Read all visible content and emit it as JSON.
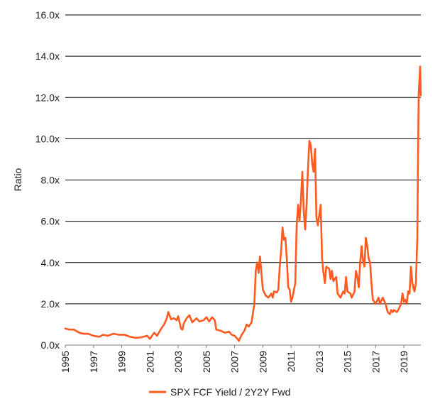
{
  "chart_data": {
    "type": "line",
    "ylabel": "Ratio",
    "xlabel": "",
    "ylim": [
      0,
      16
    ],
    "xlim": [
      1995,
      2020.2
    ],
    "y_ticks": [
      {
        "value": 0,
        "label": "0.0x"
      },
      {
        "value": 2,
        "label": "2.0x"
      },
      {
        "value": 4,
        "label": "4.0x"
      },
      {
        "value": 6,
        "label": "6.0x"
      },
      {
        "value": 8,
        "label": "8.0x"
      },
      {
        "value": 10,
        "label": "10.0x"
      },
      {
        "value": 12,
        "label": "12.0x"
      },
      {
        "value": 14,
        "label": "14.0x"
      },
      {
        "value": 16,
        "label": "16.0x"
      }
    ],
    "x_ticks": [
      {
        "value": 1995,
        "label": "1995"
      },
      {
        "value": 1997,
        "label": "1997"
      },
      {
        "value": 1999,
        "label": "1999"
      },
      {
        "value": 2001,
        "label": "2001"
      },
      {
        "value": 2003,
        "label": "2003"
      },
      {
        "value": 2005,
        "label": "2005"
      },
      {
        "value": 2007,
        "label": "2007"
      },
      {
        "value": 2009,
        "label": "2009"
      },
      {
        "value": 2011,
        "label": "2011"
      },
      {
        "value": 2013,
        "label": "2013"
      },
      {
        "value": 2015,
        "label": "2015"
      },
      {
        "value": 2017,
        "label": "2017"
      },
      {
        "value": 2019,
        "label": "2019"
      }
    ],
    "grid": {
      "horizontal": true,
      "vertical": false
    },
    "legend": {
      "position": "bottom"
    },
    "series": [
      {
        "name": "SPX FCF Yield / 2Y2Y Fwd",
        "color": "#FF5A1F",
        "points": [
          [
            1995.0,
            0.8
          ],
          [
            1995.3,
            0.75
          ],
          [
            1995.6,
            0.75
          ],
          [
            1996.0,
            0.6
          ],
          [
            1996.3,
            0.55
          ],
          [
            1996.6,
            0.55
          ],
          [
            1997.0,
            0.45
          ],
          [
            1997.4,
            0.4
          ],
          [
            1997.7,
            0.5
          ],
          [
            1998.0,
            0.45
          ],
          [
            1998.4,
            0.55
          ],
          [
            1998.8,
            0.5
          ],
          [
            1999.2,
            0.5
          ],
          [
            1999.6,
            0.4
          ],
          [
            2000.0,
            0.35
          ],
          [
            2000.4,
            0.38
          ],
          [
            2000.8,
            0.45
          ],
          [
            2001.0,
            0.3
          ],
          [
            2001.3,
            0.6
          ],
          [
            2001.5,
            0.45
          ],
          [
            2001.8,
            0.8
          ],
          [
            2002.0,
            1.0
          ],
          [
            2002.2,
            1.3
          ],
          [
            2002.3,
            1.6
          ],
          [
            2002.5,
            1.25
          ],
          [
            2002.7,
            1.3
          ],
          [
            2002.9,
            1.2
          ],
          [
            2003.0,
            1.4
          ],
          [
            2003.2,
            0.8
          ],
          [
            2003.3,
            0.75
          ],
          [
            2003.4,
            1.05
          ],
          [
            2003.6,
            1.3
          ],
          [
            2003.8,
            1.45
          ],
          [
            2004.0,
            1.1
          ],
          [
            2004.3,
            1.3
          ],
          [
            2004.5,
            1.15
          ],
          [
            2004.8,
            1.2
          ],
          [
            2005.0,
            1.35
          ],
          [
            2005.2,
            1.15
          ],
          [
            2005.4,
            1.35
          ],
          [
            2005.6,
            1.2
          ],
          [
            2005.7,
            0.75
          ],
          [
            2006.0,
            0.7
          ],
          [
            2006.3,
            0.6
          ],
          [
            2006.6,
            0.65
          ],
          [
            2006.8,
            0.5
          ],
          [
            2007.0,
            0.45
          ],
          [
            2007.2,
            0.3
          ],
          [
            2007.3,
            0.2
          ],
          [
            2007.5,
            0.5
          ],
          [
            2007.7,
            0.7
          ],
          [
            2007.85,
            1.0
          ],
          [
            2008.0,
            0.9
          ],
          [
            2008.2,
            1.1
          ],
          [
            2008.4,
            2.0
          ],
          [
            2008.5,
            3.6
          ],
          [
            2008.6,
            4.0
          ],
          [
            2008.7,
            3.5
          ],
          [
            2008.8,
            4.3
          ],
          [
            2008.9,
            3.5
          ],
          [
            2009.0,
            2.7
          ],
          [
            2009.2,
            2.4
          ],
          [
            2009.4,
            2.3
          ],
          [
            2009.6,
            2.5
          ],
          [
            2009.7,
            2.3
          ],
          [
            2009.8,
            2.6
          ],
          [
            2010.0,
            2.55
          ],
          [
            2010.1,
            2.7
          ],
          [
            2010.2,
            3.8
          ],
          [
            2010.3,
            4.6
          ],
          [
            2010.4,
            5.7
          ],
          [
            2010.5,
            5.1
          ],
          [
            2010.6,
            5.2
          ],
          [
            2010.7,
            4.2
          ],
          [
            2010.8,
            2.8
          ],
          [
            2010.9,
            2.7
          ],
          [
            2011.0,
            2.1
          ],
          [
            2011.1,
            2.3
          ],
          [
            2011.3,
            3.0
          ],
          [
            2011.4,
            5.8
          ],
          [
            2011.5,
            6.8
          ],
          [
            2011.6,
            6.0
          ],
          [
            2011.7,
            7.0
          ],
          [
            2011.8,
            8.4
          ],
          [
            2011.9,
            6.5
          ],
          [
            2012.0,
            5.6
          ],
          [
            2012.1,
            6.8
          ],
          [
            2012.2,
            8.5
          ],
          [
            2012.3,
            9.9
          ],
          [
            2012.4,
            9.7
          ],
          [
            2012.5,
            8.8
          ],
          [
            2012.6,
            8.4
          ],
          [
            2012.7,
            9.5
          ],
          [
            2012.8,
            6.2
          ],
          [
            2012.9,
            5.8
          ],
          [
            2013.0,
            6.3
          ],
          [
            2013.1,
            6.8
          ],
          [
            2013.2,
            4.2
          ],
          [
            2013.3,
            3.5
          ],
          [
            2013.4,
            3.0
          ],
          [
            2013.5,
            3.8
          ],
          [
            2013.7,
            3.7
          ],
          [
            2013.8,
            3.2
          ],
          [
            2013.9,
            3.6
          ],
          [
            2014.0,
            3.1
          ],
          [
            2014.2,
            3.3
          ],
          [
            2014.3,
            2.5
          ],
          [
            2014.5,
            2.3
          ],
          [
            2014.7,
            2.6
          ],
          [
            2014.8,
            2.5
          ],
          [
            2014.9,
            3.3
          ],
          [
            2015.0,
            2.6
          ],
          [
            2015.2,
            2.5
          ],
          [
            2015.3,
            2.3
          ],
          [
            2015.5,
            2.6
          ],
          [
            2015.6,
            3.6
          ],
          [
            2015.7,
            3.3
          ],
          [
            2015.8,
            2.8
          ],
          [
            2015.9,
            4.0
          ],
          [
            2016.0,
            4.8
          ],
          [
            2016.1,
            4.1
          ],
          [
            2016.2,
            3.8
          ],
          [
            2016.3,
            5.2
          ],
          [
            2016.4,
            4.8
          ],
          [
            2016.5,
            4.2
          ],
          [
            2016.6,
            4.0
          ],
          [
            2016.7,
            3.0
          ],
          [
            2016.8,
            2.2
          ],
          [
            2016.9,
            2.1
          ],
          [
            2017.0,
            2.0
          ],
          [
            2017.2,
            2.3
          ],
          [
            2017.3,
            2.0
          ],
          [
            2017.5,
            2.3
          ],
          [
            2017.7,
            2.0
          ],
          [
            2017.85,
            1.6
          ],
          [
            2018.0,
            1.5
          ],
          [
            2018.1,
            1.7
          ],
          [
            2018.2,
            1.6
          ],
          [
            2018.3,
            1.7
          ],
          [
            2018.5,
            1.6
          ],
          [
            2018.6,
            1.7
          ],
          [
            2018.8,
            2.0
          ],
          [
            2018.9,
            2.5
          ],
          [
            2019.0,
            2.1
          ],
          [
            2019.1,
            2.2
          ],
          [
            2019.2,
            2.0
          ],
          [
            2019.3,
            2.6
          ],
          [
            2019.4,
            2.5
          ],
          [
            2019.5,
            3.8
          ],
          [
            2019.6,
            3.0
          ],
          [
            2019.7,
            2.7
          ],
          [
            2019.75,
            2.6
          ],
          [
            2019.85,
            3.0
          ],
          [
            2019.95,
            5.2
          ],
          [
            2020.0,
            9.0
          ],
          [
            2020.05,
            12.2
          ],
          [
            2020.1,
            12.8
          ],
          [
            2020.15,
            13.5
          ],
          [
            2020.2,
            12.1
          ]
        ]
      }
    ]
  }
}
